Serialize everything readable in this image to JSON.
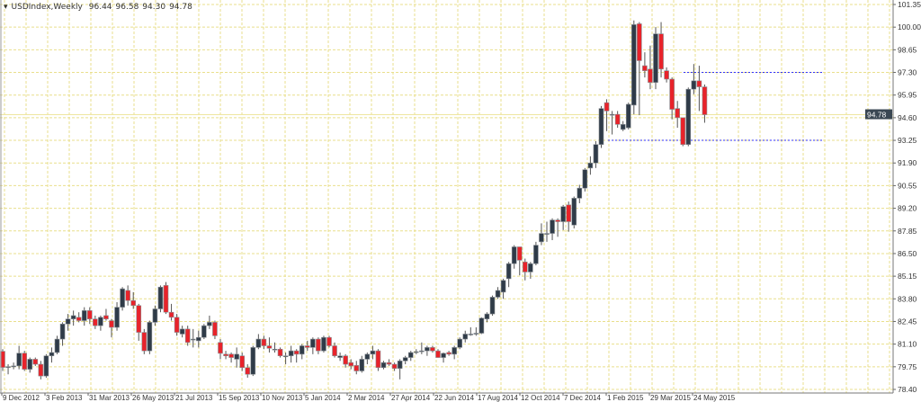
{
  "header": {
    "symbol": "USDIndex,Weekly",
    "open": "96.44",
    "high": "96.58",
    "low": "94.30",
    "close": "94.78",
    "menu_icon": "triangle-down-icon"
  },
  "colors": {
    "bull": "#2f3b48",
    "bear": "#e8232a",
    "outline": "#8a8f94",
    "grid": "#e9df8c",
    "level_line": "#3333ff",
    "price_line": "#efe6a0",
    "price_label_bg": "#3a4753"
  },
  "chart_data": {
    "type": "candlestick",
    "title": "USDIndex,Weekly",
    "ylim": [
      78.4,
      101.35
    ],
    "y_ticks": [
      "101.35",
      "100.00",
      "98.65",
      "97.30",
      "95.95",
      "94.60",
      "93.25",
      "91.90",
      "90.55",
      "89.20",
      "87.85",
      "86.50",
      "85.15",
      "83.80",
      "82.45",
      "81.10",
      "79.75",
      "78.40"
    ],
    "x_ticks": [
      "9 Dec 2012",
      "3 Feb 2013",
      "31 Mar 2013",
      "26 May 2013",
      "21 Jul 2013",
      "15 Sep 2013",
      "10 Nov 2013",
      "5 Jan 2014",
      "2 Mar 2014",
      "27 Apr 2014",
      "22 Jun 2014",
      "17 Aug 2014",
      "12 Oct 2014",
      "7 Dec 2014",
      "1 Feb 2015",
      "29 Mar 2015",
      "24 May 2015"
    ],
    "grid": true,
    "current_price": "94.78",
    "levels": [
      {
        "value": 97.3,
        "style": "dotted-blue"
      },
      {
        "value": 93.25,
        "style": "dotted-blue"
      }
    ],
    "ohlc": [
      [
        80.67,
        80.8,
        79.5,
        79.71
      ],
      [
        79.75,
        79.9,
        79.3,
        79.76
      ],
      [
        79.8,
        80.0,
        79.6,
        79.8
      ],
      [
        79.8,
        81.0,
        79.6,
        80.56
      ],
      [
        80.56,
        80.7,
        79.5,
        79.6
      ],
      [
        79.6,
        80.3,
        79.4,
        80.2
      ],
      [
        80.2,
        80.3,
        79.8,
        79.9
      ],
      [
        79.9,
        80.1,
        79.0,
        79.2
      ],
      [
        79.2,
        80.5,
        79.1,
        80.4
      ],
      [
        80.4,
        80.9,
        80.0,
        80.6
      ],
      [
        80.6,
        81.6,
        80.5,
        81.4
      ],
      [
        81.4,
        82.4,
        81.0,
        82.3
      ],
      [
        82.3,
        82.9,
        81.9,
        82.6
      ],
      [
        82.6,
        83.1,
        82.2,
        82.8
      ],
      [
        82.7,
        83.0,
        82.4,
        82.5
      ],
      [
        82.5,
        83.3,
        82.2,
        83.1
      ],
      [
        83.1,
        83.3,
        82.3,
        82.6
      ],
      [
        82.6,
        82.8,
        82.0,
        82.2
      ],
      [
        82.2,
        82.8,
        81.9,
        82.7
      ],
      [
        82.8,
        83.2,
        82.5,
        82.6
      ],
      [
        82.5,
        82.6,
        81.5,
        82.1
      ],
      [
        82.1,
        83.6,
        81.9,
        83.3
      ],
      [
        83.3,
        84.5,
        83.1,
        84.4
      ],
      [
        84.3,
        84.6,
        83.4,
        83.7
      ],
      [
        83.7,
        84.2,
        83.2,
        83.4
      ],
      [
        83.4,
        83.5,
        81.3,
        81.8
      ],
      [
        81.8,
        82.0,
        80.5,
        80.7
      ],
      [
        80.7,
        82.5,
        80.5,
        82.4
      ],
      [
        82.4,
        83.4,
        82.2,
        83.2
      ],
      [
        83.2,
        84.6,
        83.0,
        84.5
      ],
      [
        84.6,
        84.8,
        82.9,
        83.0
      ],
      [
        83.0,
        83.5,
        82.5,
        82.7
      ],
      [
        82.7,
        82.9,
        81.6,
        81.8
      ],
      [
        81.7,
        82.2,
        81.5,
        82.0
      ],
      [
        82.0,
        82.2,
        81.0,
        81.2
      ],
      [
        81.4,
        82.0,
        80.9,
        81.4
      ],
      [
        81.3,
        81.9,
        80.9,
        81.5
      ],
      [
        81.5,
        82.3,
        81.4,
        82.2
      ],
      [
        82.2,
        82.8,
        82.0,
        82.4
      ],
      [
        82.4,
        82.5,
        81.4,
        81.6
      ],
      [
        81.2,
        81.4,
        80.2,
        80.55
      ],
      [
        80.5,
        80.7,
        80.2,
        80.4
      ],
      [
        80.5,
        80.6,
        80.0,
        80.3
      ],
      [
        80.2,
        80.9,
        79.7,
        80.5
      ],
      [
        80.4,
        80.6,
        79.5,
        79.7
      ],
      [
        79.7,
        79.9,
        79.1,
        79.3
      ],
      [
        79.3,
        81.0,
        79.2,
        80.9
      ],
      [
        80.9,
        81.7,
        80.8,
        81.4
      ],
      [
        81.4,
        81.6,
        80.8,
        81.0
      ],
      [
        81.0,
        81.5,
        80.6,
        80.85
      ],
      [
        80.8,
        81.2,
        80.6,
        80.8
      ],
      [
        80.8,
        80.9,
        80.3,
        80.4
      ],
      [
        80.4,
        80.6,
        79.9,
        80.4
      ],
      [
        80.4,
        81.0,
        80.0,
        80.7
      ],
      [
        80.7,
        80.8,
        80.0,
        80.5
      ],
      [
        80.5,
        81.1,
        80.2,
        81.0
      ],
      [
        81.0,
        81.3,
        80.7,
        80.9
      ],
      [
        80.9,
        81.5,
        80.5,
        81.4
      ],
      [
        81.4,
        81.5,
        80.5,
        80.7
      ],
      [
        80.7,
        81.6,
        80.6,
        81.5
      ],
      [
        81.5,
        81.6,
        80.9,
        81.0
      ],
      [
        81.0,
        81.2,
        80.3,
        80.4
      ],
      [
        80.3,
        80.6,
        80.1,
        80.4
      ],
      [
        80.4,
        80.5,
        79.7,
        79.9
      ],
      [
        80.0,
        80.2,
        79.6,
        79.8
      ],
      [
        79.83,
        80.1,
        79.3,
        79.5
      ],
      [
        79.5,
        80.4,
        79.4,
        80.2
      ],
      [
        80.2,
        80.6,
        79.9,
        80.5
      ],
      [
        80.5,
        81.0,
        80.2,
        80.7
      ],
      [
        80.7,
        80.8,
        79.5,
        79.7
      ],
      [
        79.7,
        80.1,
        79.6,
        80.0
      ],
      [
        80.0,
        80.2,
        79.8,
        79.9
      ],
      [
        79.9,
        80.0,
        79.5,
        79.65
      ],
      [
        79.65,
        80.2,
        79.0,
        80.1
      ],
      [
        80.1,
        80.4,
        79.9,
        80.3
      ],
      [
        80.3,
        80.7,
        80.1,
        80.6
      ],
      [
        80.6,
        80.8,
        80.5,
        80.65
      ],
      [
        80.7,
        81.2,
        80.5,
        80.7
      ],
      [
        80.7,
        81.0,
        80.4,
        80.9
      ],
      [
        80.9,
        81.0,
        80.6,
        80.7
      ],
      [
        80.7,
        80.8,
        80.3,
        80.3
      ],
      [
        80.3,
        80.6,
        80.0,
        80.55
      ],
      [
        80.6,
        80.7,
        80.4,
        80.5
      ],
      [
        80.5,
        81.0,
        80.2,
        80.9
      ],
      [
        80.9,
        81.5,
        80.8,
        81.4
      ],
      [
        81.4,
        81.9,
        81.2,
        81.7
      ],
      [
        81.7,
        82.1,
        81.6,
        81.7
      ],
      [
        81.75,
        82.1,
        81.6,
        81.75
      ],
      [
        81.75,
        82.7,
        81.7,
        82.65
      ],
      [
        82.6,
        83.0,
        82.4,
        82.9
      ],
      [
        82.9,
        84.0,
        82.8,
        83.9
      ],
      [
        83.9,
        84.5,
        83.8,
        84.3
      ],
      [
        84.2,
        85.0,
        83.8,
        84.9
      ],
      [
        85.0,
        86.0,
        84.5,
        85.9
      ],
      [
        85.9,
        87.0,
        85.6,
        86.9
      ],
      [
        86.9,
        86.9,
        85.2,
        86.1
      ],
      [
        86.0,
        86.2,
        84.9,
        85.4
      ],
      [
        85.4,
        86.0,
        85.0,
        85.9
      ],
      [
        85.9,
        87.2,
        85.8,
        87.0
      ],
      [
        87.2,
        88.3,
        87.0,
        87.7
      ],
      [
        87.7,
        88.4,
        87.2,
        87.7
      ],
      [
        87.7,
        88.6,
        87.3,
        88.5
      ],
      [
        88.5,
        88.6,
        87.5,
        88.4
      ],
      [
        88.4,
        89.4,
        87.9,
        89.3
      ],
      [
        89.4,
        89.6,
        87.8,
        88.4
      ],
      [
        88.2,
        89.9,
        88.0,
        89.8
      ],
      [
        89.8,
        90.6,
        89.5,
        90.4
      ],
      [
        90.4,
        91.6,
        90.2,
        91.5
      ],
      [
        91.6,
        92.3,
        91.2,
        91.9
      ],
      [
        91.9,
        93.2,
        91.6,
        93.0
      ],
      [
        93.0,
        95.3,
        92.8,
        95.15
      ],
      [
        95.5,
        95.7,
        93.8,
        95.0
      ],
      [
        94.8,
        95.0,
        93.6,
        94.8
      ],
      [
        94.8,
        95.0,
        94.0,
        94.2
      ],
      [
        93.9,
        94.4,
        93.8,
        94.2
      ],
      [
        94.0,
        95.5,
        93.9,
        95.4
      ],
      [
        95.35,
        100.4,
        94.8,
        100.15
      ],
      [
        100.2,
        100.3,
        94.75,
        98.0
      ],
      [
        97.7,
        98.5,
        97.0,
        97.4
      ],
      [
        97.5,
        98.9,
        96.3,
        96.7
      ],
      [
        96.7,
        100.0,
        96.3,
        99.6
      ],
      [
        99.6,
        100.3,
        97.0,
        97.5
      ],
      [
        97.4,
        97.6,
        96.7,
        96.9
      ],
      [
        96.9,
        97.0,
        94.5,
        95.1
      ],
      [
        95.15,
        95.6,
        94.0,
        94.6
      ],
      [
        94.6,
        94.6,
        92.9,
        93.0
      ],
      [
        93.0,
        96.4,
        92.9,
        96.3
      ],
      [
        96.3,
        97.8,
        96.0,
        96.8
      ],
      [
        96.8,
        97.7,
        95.0,
        96.44
      ],
      [
        96.44,
        96.58,
        94.3,
        94.78
      ]
    ]
  }
}
